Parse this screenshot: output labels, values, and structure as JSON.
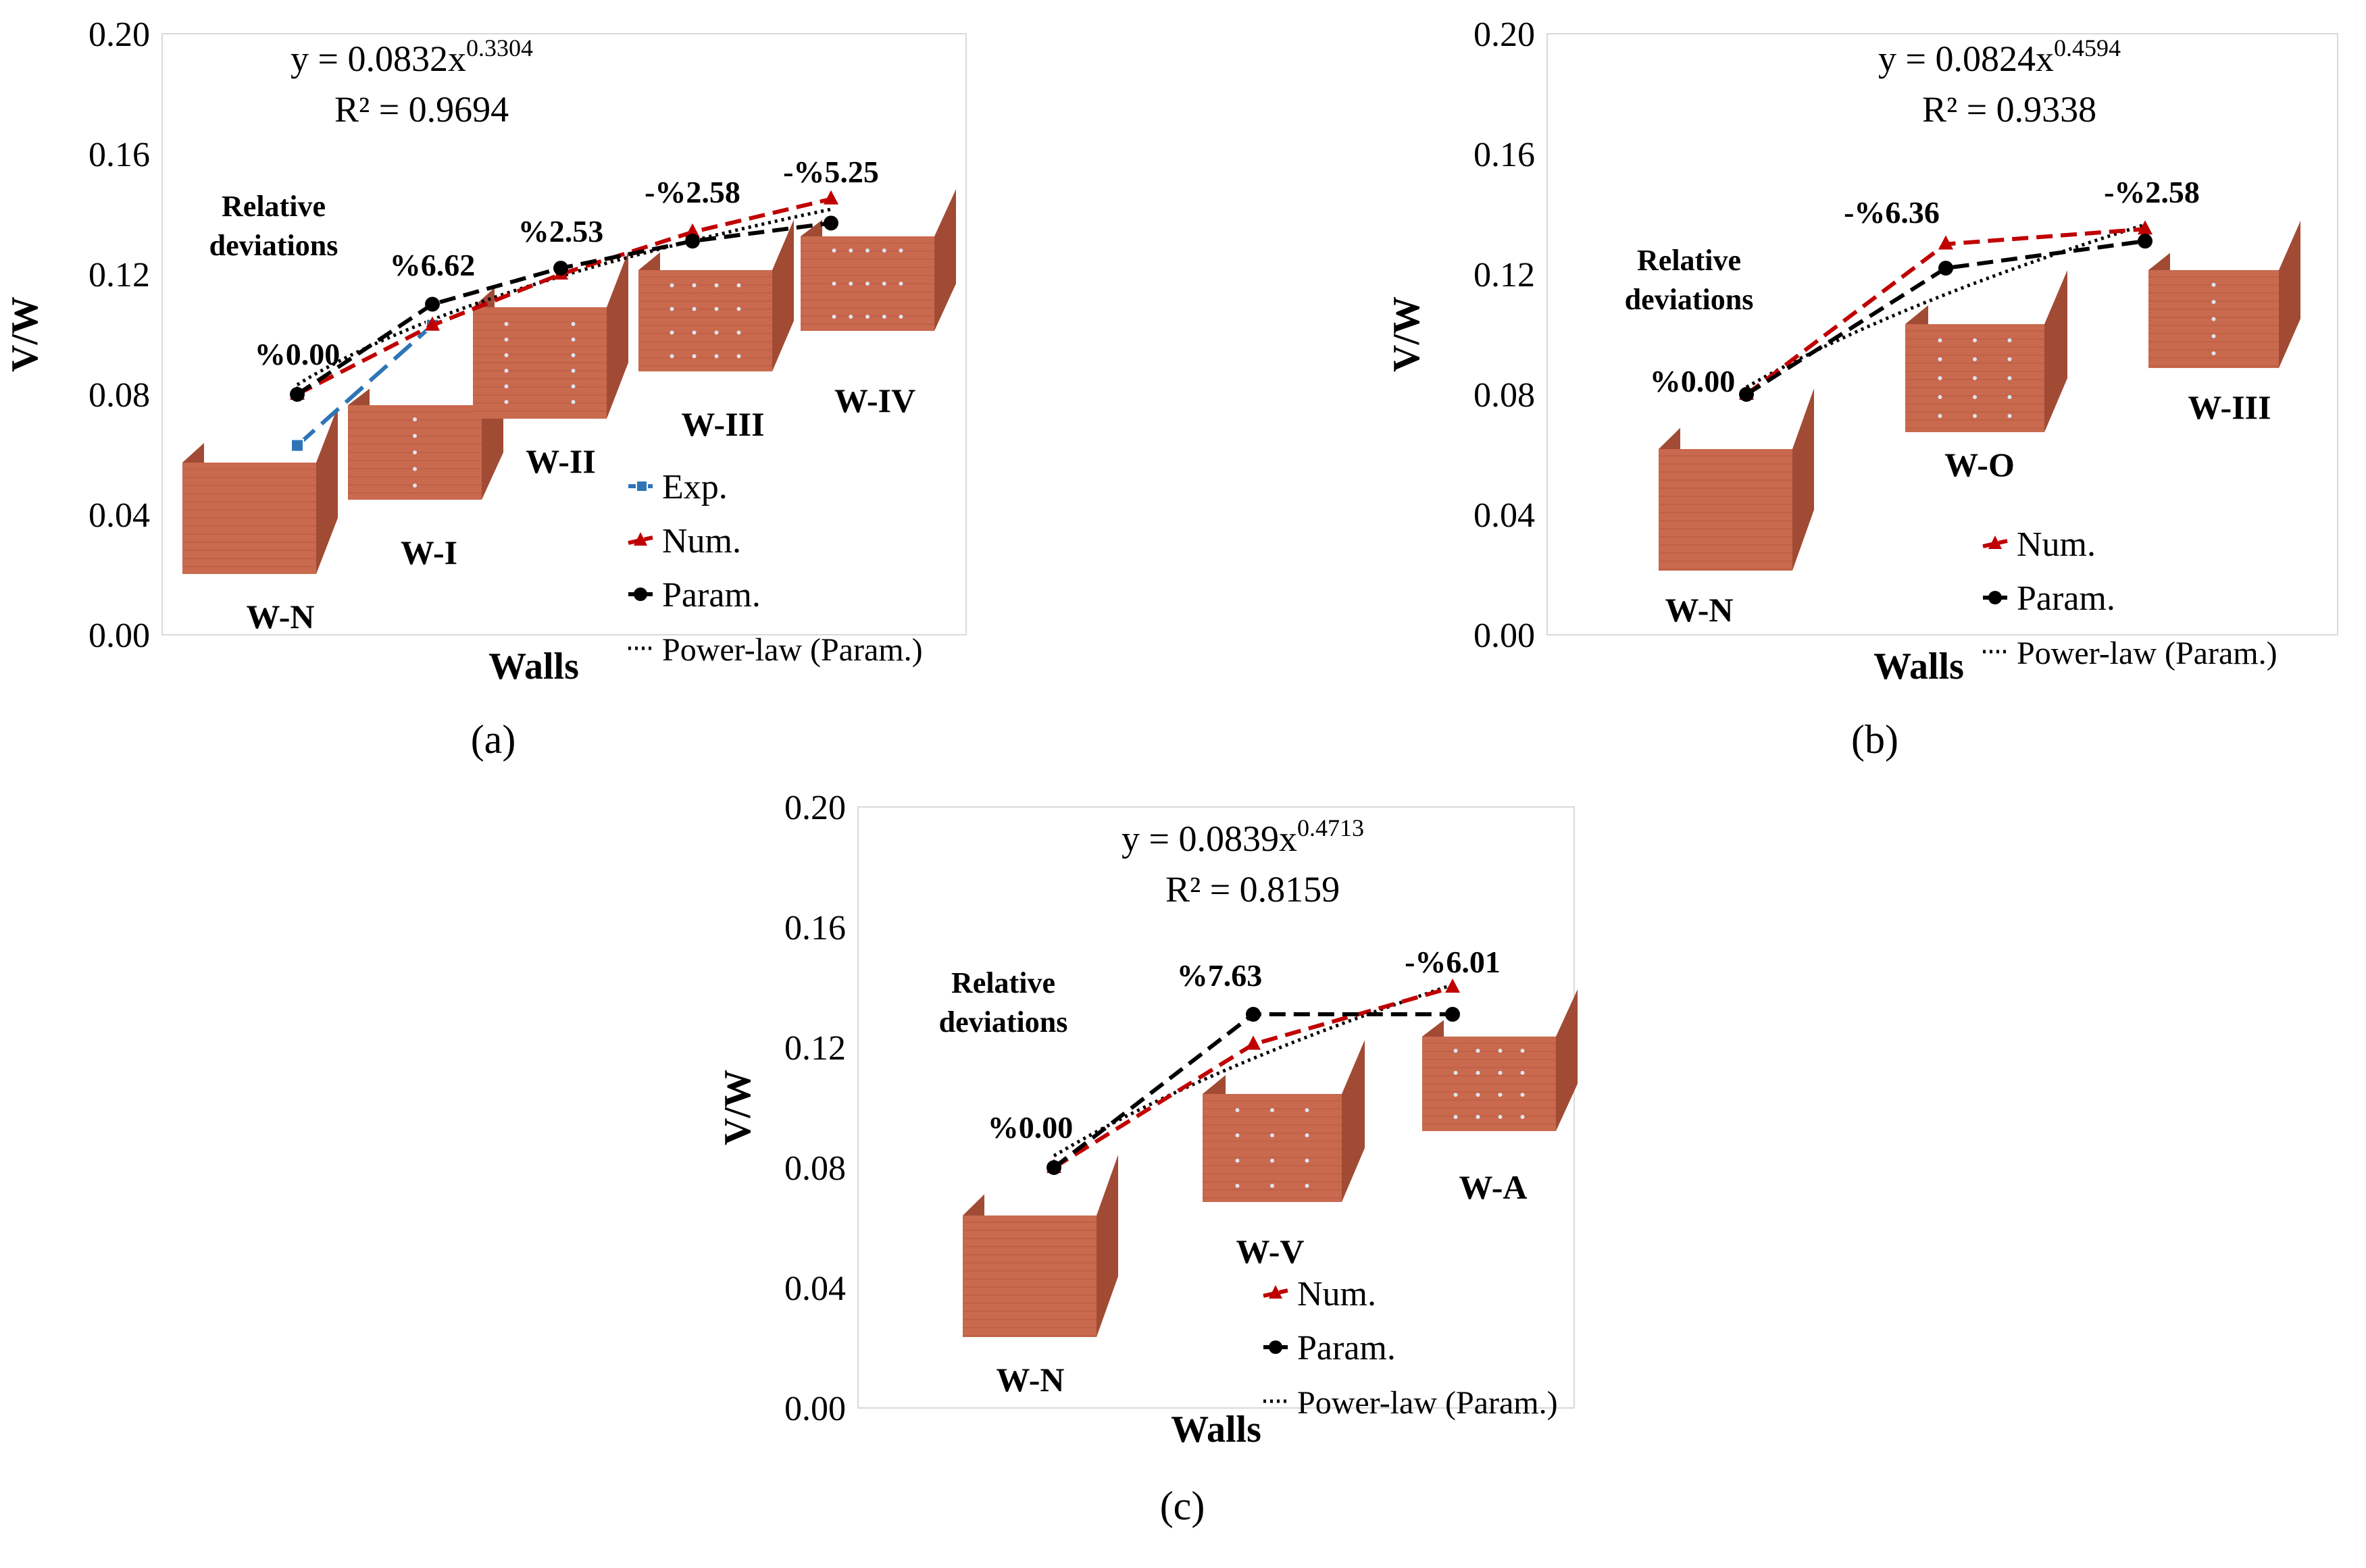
{
  "figure": {
    "colors": {
      "exp": "#2E75B6",
      "num": "#C00000",
      "param": "#000000",
      "brick": "#C9694E",
      "brick_dark": "#A14B34",
      "brick_top": "#9A4430",
      "axis": "#8C8C8C"
    }
  },
  "chart_data": [
    {
      "id": "a",
      "type": "line",
      "panel_label": "(a)",
      "xlabel": "Walls",
      "ylabel": "V/W",
      "ylim": [
        0,
        0.2
      ],
      "yticks": [
        "0.00",
        "0.04",
        "0.08",
        "0.12",
        "0.16",
        "0.20"
      ],
      "categories": [
        "W-N",
        "W-I",
        "W-II",
        "W-III",
        "W-IV"
      ],
      "series": [
        {
          "key": "exp",
          "name": "Exp.",
          "values": [
            0.063,
            0.103,
            null,
            null,
            null
          ]
        },
        {
          "key": "num",
          "name": "Num.",
          "values": [
            0.08,
            0.103,
            0.12,
            0.134,
            0.145
          ]
        },
        {
          "key": "param",
          "name": "Param.",
          "values": [
            0.08,
            0.11,
            0.122,
            0.131,
            0.137
          ]
        },
        {
          "key": "power",
          "name": "Power-law (Param.)",
          "fit": {
            "a": 0.0832,
            "b": 0.3304
          }
        }
      ],
      "equation": {
        "prefix": "y = 0.0832x",
        "exponent": "0.3304",
        "r2": "R² = 0.9694"
      },
      "deviation_title": [
        "Relative",
        "deviations"
      ],
      "deviations": [
        "%0.00",
        "%6.62",
        "%2.53",
        "-%2.58",
        "-%5.25"
      ],
      "legend": [
        "Exp.",
        "Num.",
        "Param.",
        "Power-law (Param.)"
      ]
    },
    {
      "id": "b",
      "type": "line",
      "panel_label": "(b)",
      "xlabel": "Walls",
      "ylabel": "V/W",
      "ylim": [
        0,
        0.2
      ],
      "yticks": [
        "0.00",
        "0.04",
        "0.08",
        "0.12",
        "0.16",
        "0.20"
      ],
      "categories": [
        "W-N",
        "W-O",
        "W-III"
      ],
      "series": [
        {
          "key": "num",
          "name": "Num.",
          "values": [
            0.08,
            0.13,
            0.135
          ]
        },
        {
          "key": "param",
          "name": "Param.",
          "values": [
            0.08,
            0.122,
            0.131
          ]
        },
        {
          "key": "power",
          "name": "Power-law (Param.)",
          "fit": {
            "a": 0.0824,
            "b": 0.4594
          }
        }
      ],
      "equation": {
        "prefix": "y = 0.0824x",
        "exponent": "0.4594",
        "r2": "R² = 0.9338"
      },
      "deviation_title": [
        "Relative",
        "deviations"
      ],
      "deviations": [
        "%0.00",
        "-%6.36",
        "-%2.58"
      ],
      "legend": [
        "Num.",
        "Param.",
        "Power-law (Param.)"
      ]
    },
    {
      "id": "c",
      "type": "line",
      "panel_label": "(c)",
      "xlabel": "Walls",
      "ylabel": "V/W",
      "ylim": [
        0,
        0.2
      ],
      "yticks": [
        "0.00",
        "0.04",
        "0.08",
        "0.12",
        "0.16",
        "0.20"
      ],
      "categories": [
        "W-N",
        "W-V",
        "W-A"
      ],
      "series": [
        {
          "key": "num",
          "name": "Num.",
          "values": [
            0.08,
            0.121,
            0.14
          ]
        },
        {
          "key": "param",
          "name": "Param.",
          "values": [
            0.08,
            0.131,
            0.131
          ]
        },
        {
          "key": "power",
          "name": "Power-law (Param.)",
          "fit": {
            "a": 0.0839,
            "b": 0.4713
          }
        }
      ],
      "equation": {
        "prefix": "y = 0.0839x",
        "exponent": "0.4713",
        "r2": "R² = 0.8159"
      },
      "deviation_title": [
        "Relative",
        "deviations"
      ],
      "deviations": [
        "%0.00",
        "%7.63",
        "-%6.01"
      ],
      "legend": [
        "Num.",
        "Param.",
        "Power-law (Param.)"
      ]
    }
  ]
}
